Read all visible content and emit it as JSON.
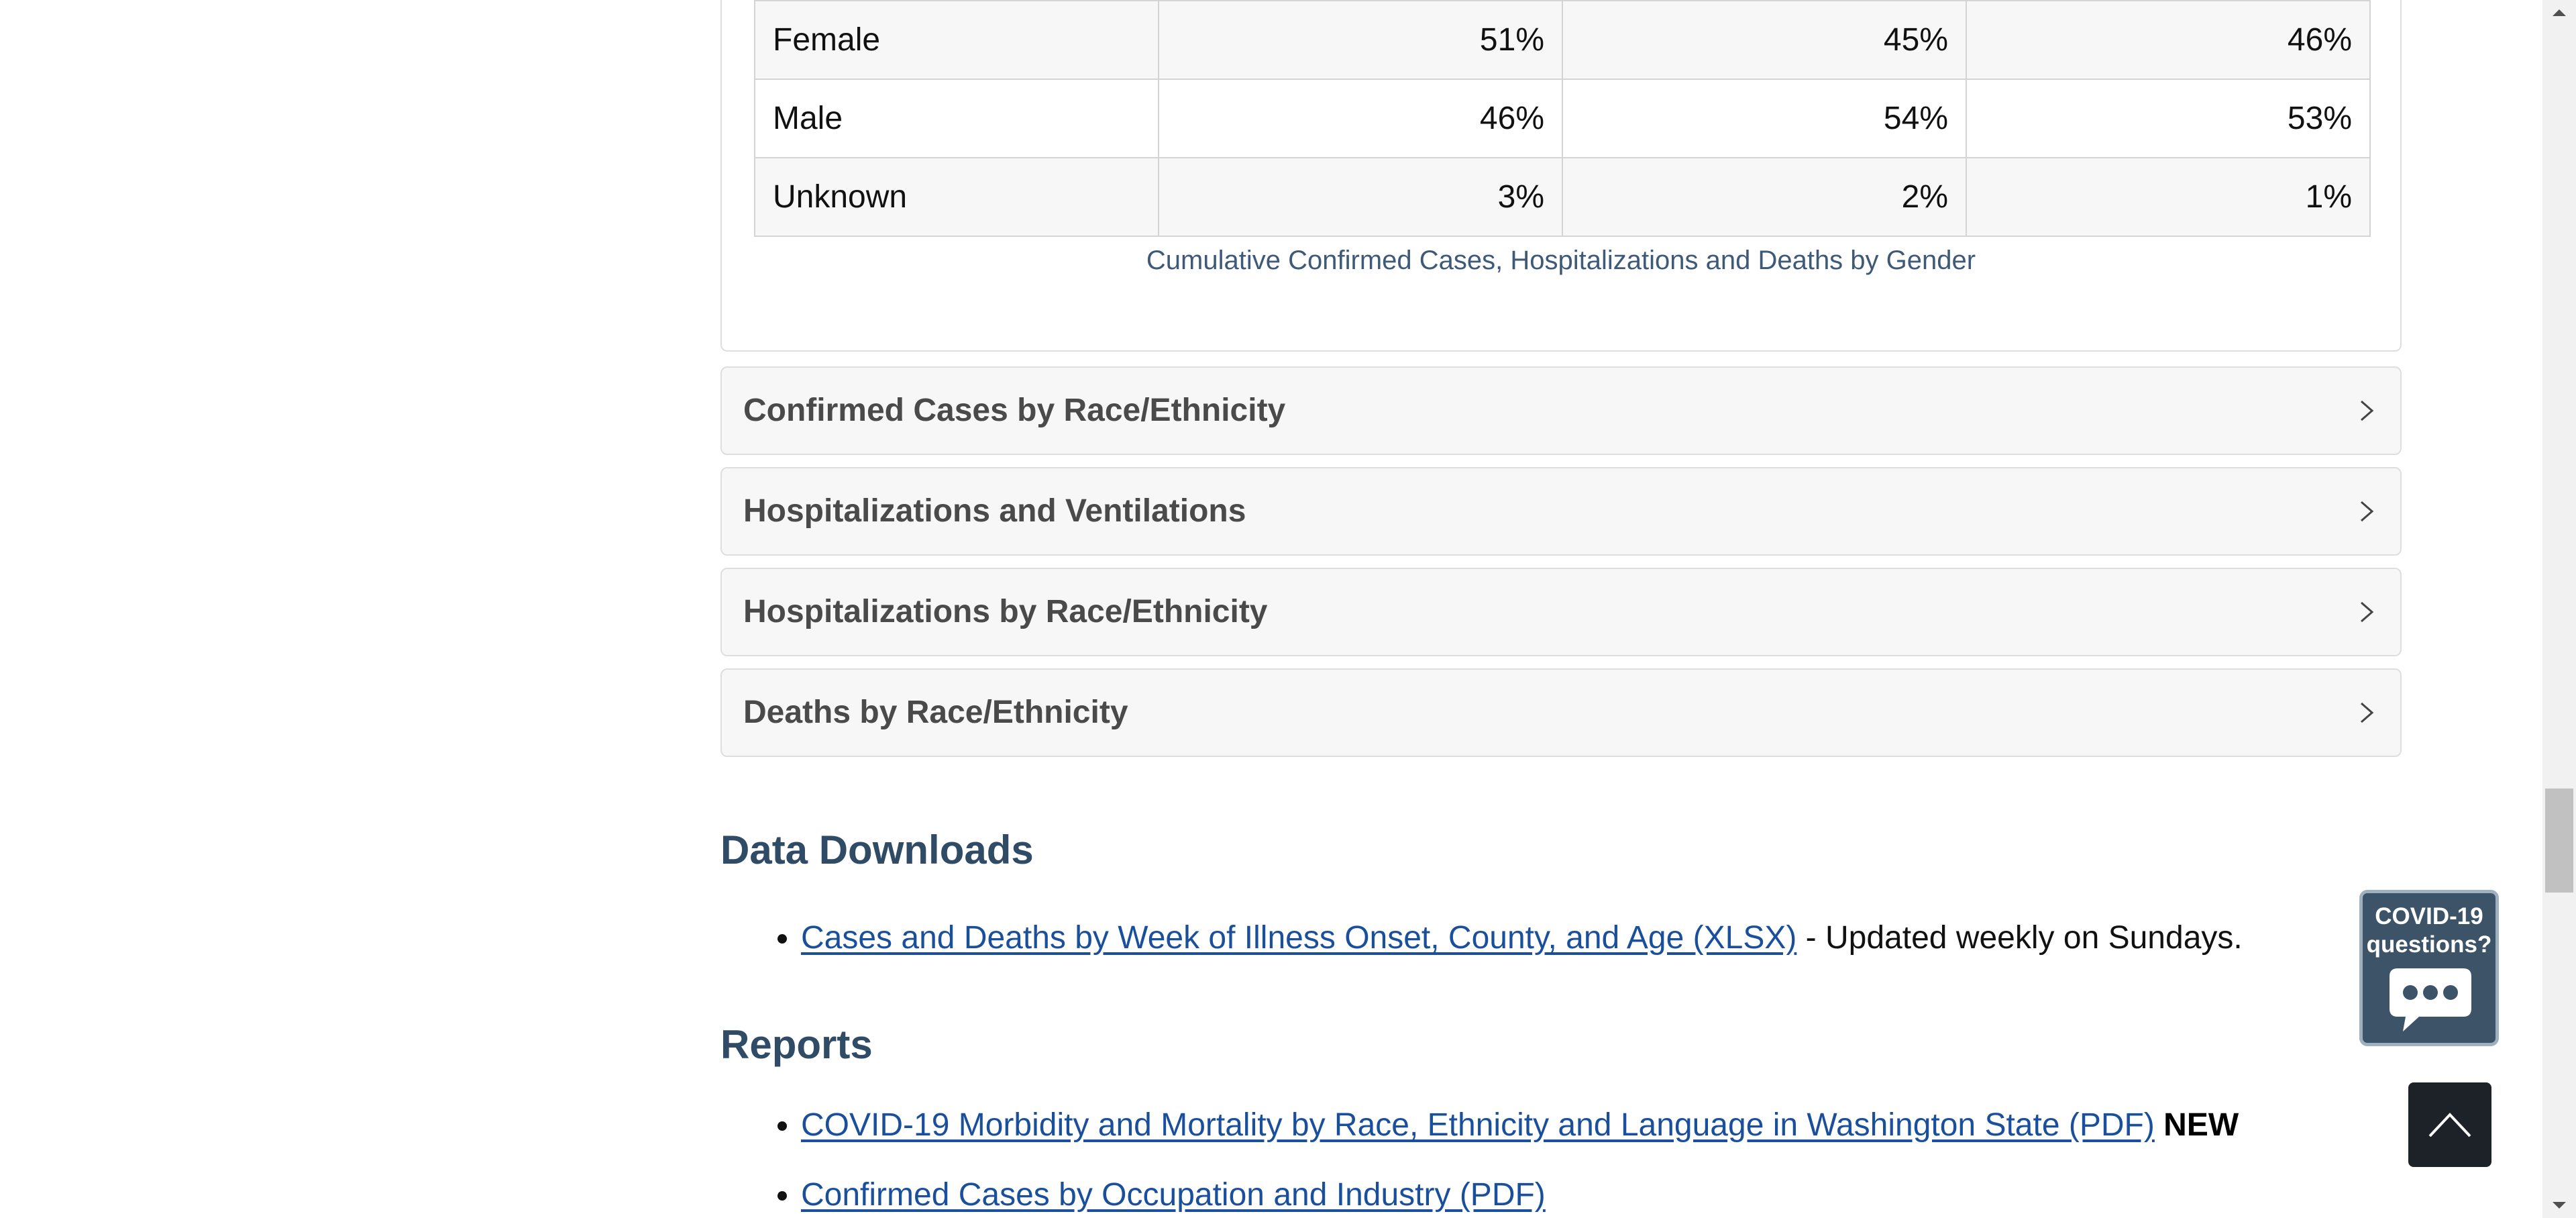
{
  "gender_table": {
    "rows": [
      {
        "label": "Female",
        "cases": "51%",
        "hospitalizations": "45%",
        "deaths": "46%"
      },
      {
        "label": "Male",
        "cases": "46%",
        "hospitalizations": "54%",
        "deaths": "53%"
      },
      {
        "label": "Unknown",
        "cases": "3%",
        "hospitalizations": "2%",
        "deaths": "1%"
      }
    ],
    "caption": "Cumulative Confirmed Cases, Hospitalizations and Deaths by Gender"
  },
  "accordion": [
    {
      "title": "Confirmed Cases by Race/Ethnicity",
      "expanded": false,
      "icon": "chevron-right-icon"
    },
    {
      "title": "Hospitalizations and Ventilations",
      "expanded": false,
      "icon": "chevron-right-icon"
    },
    {
      "title": "Hospitalizations by Race/Ethnicity",
      "expanded": false,
      "icon": "chevron-right-icon"
    },
    {
      "title": "Deaths by Race/Ethnicity",
      "expanded": false,
      "icon": "chevron-right-icon"
    }
  ],
  "data_downloads": {
    "heading": "Data Downloads",
    "items": [
      {
        "link": "Cases and Deaths by Week of Illness Onset, County, and Age (XLSX)",
        "suffix": " - Updated weekly on Sundays."
      }
    ]
  },
  "reports": {
    "heading": "Reports",
    "items": [
      {
        "link": "COVID-19 Morbidity and Mortality by Race, Ethnicity and Language in Washington State (PDF)",
        "badge": "NEW"
      },
      {
        "link": "Confirmed Cases by Occupation and Industry (PDF)"
      }
    ]
  },
  "covid_widget": {
    "line1": "COVID-19",
    "line2": "questions?",
    "icon": "chat-bubble-icon",
    "color": "#3d5468"
  },
  "back_to_top": {
    "icon": "chevron-up-icon",
    "color": "#1c2228"
  },
  "colors": {
    "link": "#1a4f9c",
    "heading": "#2f4b66",
    "caption": "#3e5a78"
  }
}
